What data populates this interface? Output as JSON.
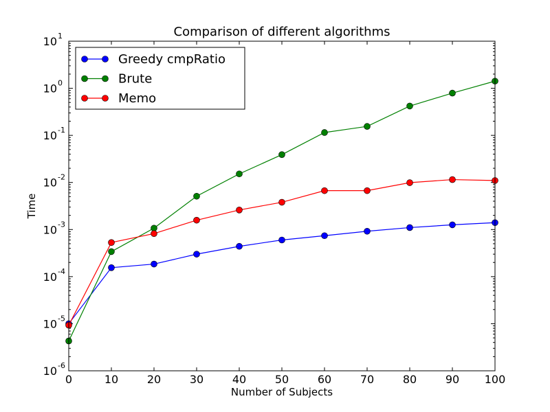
{
  "chart_data": {
    "type": "line",
    "title": "Comparison of different algorithms",
    "xlabel": "Number of Subjects",
    "ylabel": "Time",
    "xlim": [
      0,
      100
    ],
    "ylim": [
      1e-06,
      10
    ],
    "yscale": "log",
    "x_ticks": [
      "0",
      "10",
      "20",
      "30",
      "40",
      "50",
      "60",
      "70",
      "80",
      "90",
      "100"
    ],
    "y_ticks": [
      {
        "base": "10",
        "exp": "-6"
      },
      {
        "base": "10",
        "exp": "-5"
      },
      {
        "base": "10",
        "exp": "-4"
      },
      {
        "base": "10",
        "exp": "-3"
      },
      {
        "base": "10",
        "exp": "-2"
      },
      {
        "base": "10",
        "exp": "-1"
      },
      {
        "base": "10",
        "exp": "0"
      },
      {
        "base": "10",
        "exp": "1"
      }
    ],
    "x": [
      0,
      10,
      20,
      30,
      40,
      50,
      60,
      70,
      80,
      90,
      100
    ],
    "legend_position": "top-left",
    "grid": false,
    "series": [
      {
        "name": "Greedy cmpRatio",
        "color": "#0000ff",
        "values": [
          1e-05,
          0.000155,
          0.000185,
          0.0003,
          0.00044,
          0.0006,
          0.00074,
          0.00092,
          0.0011,
          0.00126,
          0.0014
        ]
      },
      {
        "name": "Brute",
        "color": "#008000",
        "values": [
          4.3e-06,
          0.00034,
          0.00107,
          0.0051,
          0.0152,
          0.039,
          0.115,
          0.155,
          0.42,
          0.79,
          1.42
        ]
      },
      {
        "name": "Memo",
        "color": "#ff0000",
        "values": [
          9.3e-06,
          0.00053,
          0.00082,
          0.00158,
          0.0026,
          0.0038,
          0.0067,
          0.0067,
          0.0099,
          0.0115,
          0.011
        ]
      }
    ]
  }
}
